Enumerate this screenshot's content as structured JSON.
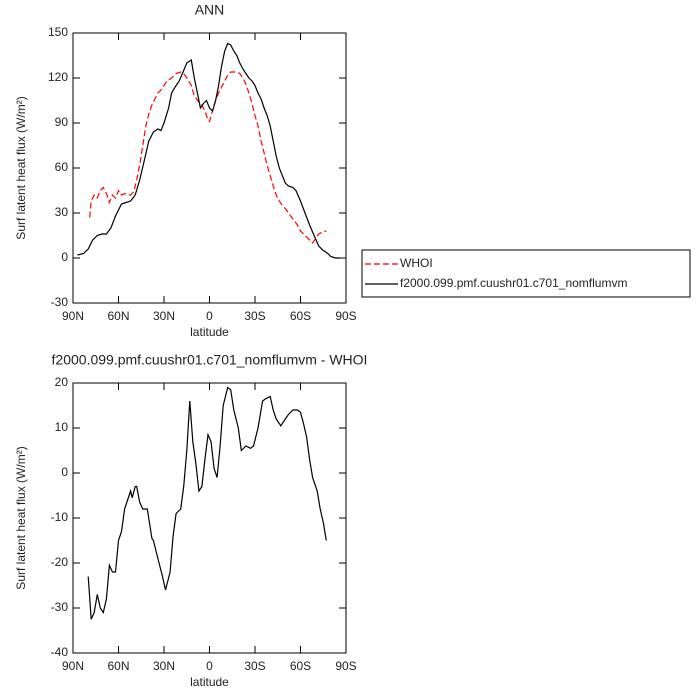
{
  "chart_data": [
    {
      "type": "line",
      "title": "ANN",
      "xlabel": "latitude",
      "ylabel": "Surf latent heat flux (W/m²)",
      "xlim": [
        90,
        -90
      ],
      "ylim": [
        -30,
        150
      ],
      "xticks": [
        {
          "value": 90,
          "label": "90N"
        },
        {
          "value": 60,
          "label": "60N"
        },
        {
          "value": 30,
          "label": "30N"
        },
        0,
        {
          "value": -30,
          "label": "30S"
        },
        {
          "value": -60,
          "label": "60S"
        },
        {
          "value": -90,
          "label": "90S"
        }
      ],
      "yticks": [
        -30,
        0,
        30,
        60,
        90,
        120,
        150
      ],
      "legend": "right",
      "series": [
        {
          "name": "WHOI",
          "color": "#ff0000",
          "dash": true,
          "x": [
            79,
            78,
            76,
            74,
            72,
            70,
            68,
            66,
            64,
            62,
            60,
            58,
            56,
            54,
            52,
            50,
            48,
            46,
            44,
            42,
            40,
            38,
            36,
            34,
            32,
            30,
            28,
            25,
            22,
            19,
            17,
            15,
            12,
            10,
            7,
            5,
            3,
            1,
            0,
            -2,
            -4,
            -6,
            -8,
            -10,
            -12,
            -14,
            -16,
            -18,
            -20,
            -22,
            -24,
            -26,
            -28,
            -30,
            -32,
            -34,
            -36,
            -38,
            -40,
            -42,
            -44,
            -46,
            -48,
            -50,
            -52,
            -55,
            -58,
            -60,
            -63,
            -66,
            -68,
            -70,
            -72,
            -74,
            -77
          ],
          "values": [
            27,
            38,
            42,
            40,
            45,
            47,
            43,
            37,
            42,
            40,
            45,
            42,
            43,
            42,
            42,
            44,
            52,
            62,
            75,
            88,
            96,
            102,
            106,
            110,
            112,
            115,
            118,
            120,
            123,
            124,
            123,
            120,
            115,
            108,
            104,
            102,
            98,
            92,
            91,
            98,
            105,
            110,
            114,
            118,
            122,
            124,
            124,
            124,
            123,
            120,
            116,
            110,
            103,
            95,
            88,
            78,
            70,
            62,
            55,
            48,
            42,
            38,
            35,
            33,
            30,
            26,
            22,
            18,
            15,
            12,
            10,
            13,
            16,
            17,
            18
          ]
        },
        {
          "name": "f2000.099.pmf.cuushr01.c701_nomflumvm",
          "color": "#000000",
          "dash": false,
          "x": [
            87,
            83,
            80,
            77,
            74,
            71,
            68,
            65,
            62,
            58,
            55,
            52,
            49,
            46,
            43,
            40,
            37,
            34,
            32,
            30,
            27,
            25,
            22,
            20,
            17,
            15,
            12,
            10,
            8,
            6,
            4,
            2,
            0,
            -2,
            -4,
            -6,
            -8,
            -10,
            -12,
            -14,
            -16,
            -18,
            -20,
            -22,
            -24,
            -26,
            -28,
            -30,
            -32,
            -34,
            -36,
            -38,
            -40,
            -42,
            -44,
            -46,
            -48,
            -50,
            -52,
            -55,
            -57,
            -60,
            -63,
            -66,
            -69,
            -72,
            -75,
            -78,
            -80,
            -83,
            -86
          ],
          "values": [
            2,
            3,
            6,
            12,
            15,
            16,
            16,
            20,
            28,
            36,
            37,
            38,
            42,
            52,
            65,
            78,
            84,
            86,
            85,
            90,
            100,
            110,
            115,
            118,
            125,
            130,
            132,
            120,
            110,
            100,
            103,
            105,
            100,
            98,
            105,
            115,
            128,
            138,
            143,
            142,
            138,
            135,
            130,
            126,
            123,
            120,
            118,
            115,
            110,
            106,
            100,
            95,
            88,
            78,
            68,
            60,
            55,
            50,
            48,
            47,
            45,
            38,
            30,
            22,
            15,
            8,
            5,
            3,
            1,
            0,
            0
          ]
        }
      ]
    },
    {
      "type": "line",
      "title": "f2000.099.pmf.cuushr01.c701_nomflumvm - WHOI",
      "xlabel": "latitude",
      "ylabel": "Surf latent heat flux (W/m²)",
      "xlim": [
        90,
        -90
      ],
      "ylim": [
        -40,
        20
      ],
      "xticks": [
        {
          "value": 90,
          "label": "90N"
        },
        {
          "value": 60,
          "label": "60N"
        },
        {
          "value": 30,
          "label": "30N"
        },
        0,
        {
          "value": -30,
          "label": "30S"
        },
        {
          "value": -60,
          "label": "60S"
        },
        {
          "value": -90,
          "label": "90S"
        }
      ],
      "yticks": [
        -40,
        -30,
        -20,
        -10,
        0,
        10,
        20
      ],
      "series": [
        {
          "color": "#000000",
          "dash": false,
          "x": [
            80,
            78,
            76,
            74,
            72,
            70,
            68,
            66,
            64,
            62,
            60,
            58,
            56,
            54,
            52,
            51,
            49,
            48,
            46,
            44,
            41,
            38,
            37,
            34,
            31,
            29,
            26,
            24,
            22,
            19,
            17,
            15,
            13,
            11,
            9,
            7,
            5,
            3,
            1,
            -1,
            -3,
            -5,
            -7,
            -9,
            -12,
            -14,
            -16,
            -19,
            -21,
            -24,
            -27,
            -29,
            -32,
            -35,
            -37,
            -40,
            -42,
            -44,
            -47,
            -50,
            -52,
            -55,
            -58,
            -60,
            -62,
            -64,
            -66,
            -68,
            -71,
            -73,
            -75,
            -77
          ],
          "values": [
            -23,
            -32.5,
            -31,
            -27,
            -30,
            -31,
            -28,
            -20.5,
            -22,
            -22,
            -15,
            -13,
            -8,
            -6,
            -4,
            -5.5,
            -3,
            -3,
            -6.5,
            -8,
            -8,
            -14.5,
            -15,
            -19,
            -23,
            -26,
            -22,
            -14,
            -9,
            -8,
            -3,
            5,
            16,
            7,
            2,
            -4,
            -3,
            3,
            8.5,
            7,
            1,
            -1,
            6,
            15,
            19,
            18.5,
            14,
            10,
            5,
            6,
            5.5,
            6,
            10,
            16,
            16.5,
            17,
            14,
            12,
            10.5,
            12,
            13,
            14,
            14,
            13.5,
            11,
            8,
            3,
            -1,
            -4,
            -8,
            -11,
            -15
          ]
        }
      ]
    }
  ]
}
